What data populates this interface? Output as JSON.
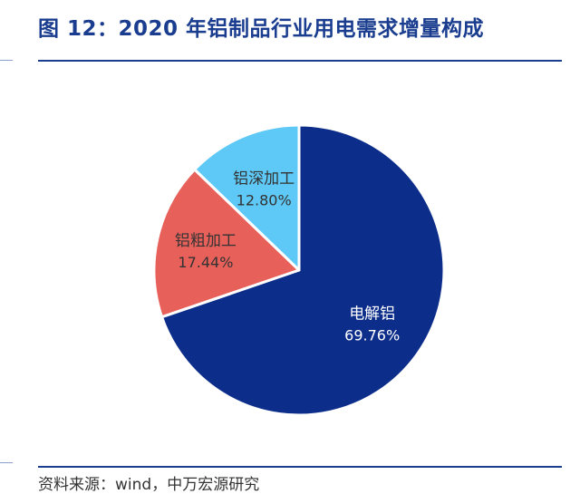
{
  "title": "图 12：2020 年铝制品行业用电需求增量构成",
  "source": "资料来源：wind，中万宏源研究",
  "chart_data": {
    "type": "pie",
    "categories": [
      "电解铝",
      "铝粗加工",
      "铝深加工"
    ],
    "values": [
      69.76,
      17.44,
      12.8
    ],
    "value_labels": [
      "69.76%",
      "17.44%",
      "12.80%"
    ],
    "colors": [
      "#0c2e8a",
      "#e8605a",
      "#5ec9f6"
    ],
    "start": "12 o'clock, clockwise"
  }
}
